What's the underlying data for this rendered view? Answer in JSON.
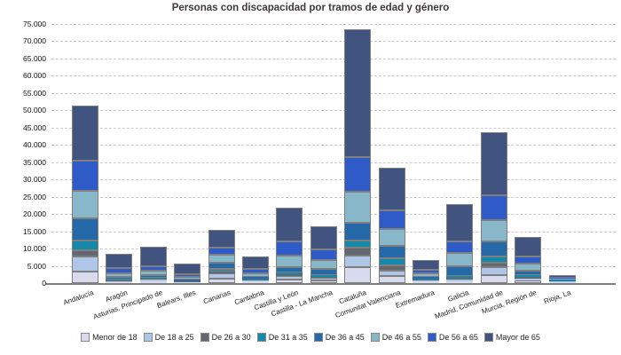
{
  "chart_data": {
    "type": "bar",
    "stacked": true,
    "title": "Personas con discapacidad por tramos de edad y género",
    "xlabel": "",
    "ylabel": "",
    "ylim": [
      0,
      75000
    ],
    "ytick_interval": 5000,
    "ytick_labels": [
      "75.000",
      "70.000",
      "65.000",
      "60.000",
      "55.000",
      "50.000",
      "45.000",
      "40.000",
      "35.000",
      "30.000",
      "25.000",
      "20.000",
      "15.000",
      "10.000",
      "5.000",
      "0"
    ],
    "grid": "horizontal-dashed",
    "legend_position": "bottom",
    "categories": [
      "Andalucía",
      "Aragón",
      "Asturias, Principado de",
      "Balears, Illes",
      "Canarias",
      "Cantabria",
      "Castilla y León",
      "Castilla - La Mancha",
      "Cataluña",
      "Comunitat Valenciana",
      "Extremadura",
      "Galicia",
      "Madrid, Comunidad de",
      "Murcia, Región de",
      "Rioja, La"
    ],
    "series": [
      {
        "name": "Menor de 18",
        "color": "#d8dbed",
        "values": [
          3400,
          300,
          500,
          150,
          1400,
          400,
          1000,
          800,
          4600,
          2000,
          400,
          600,
          2200,
          700,
          200
        ]
      },
      {
        "name": "De 18 a 25",
        "color": "#aec6e8",
        "values": [
          4300,
          300,
          400,
          150,
          1500,
          450,
          1100,
          800,
          3400,
          1700,
          350,
          550,
          2500,
          600,
          200
        ]
      },
      {
        "name": "De 26 a 30",
        "color": "#64686e",
        "values": [
          1800,
          200,
          300,
          100,
          400,
          200,
          400,
          300,
          2300,
          1500,
          250,
          350,
          1300,
          550,
          100
        ]
      },
      {
        "name": "De 31 a 35",
        "color": "#1589ab",
        "values": [
          2900,
          300,
          400,
          200,
          700,
          250,
          500,
          500,
          2000,
          1900,
          300,
          500,
          1700,
          550,
          150
        ]
      },
      {
        "name": "De 36 a 45",
        "color": "#2569a9",
        "values": [
          6300,
          750,
          700,
          350,
          2000,
          550,
          1700,
          1750,
          5100,
          3700,
          600,
          3000,
          4300,
          1300,
          300
        ]
      },
      {
        "name": "De 46 a 55",
        "color": "#88b7ca",
        "values": [
          8100,
          1050,
          1200,
          850,
          2250,
          850,
          3300,
          2550,
          9100,
          4900,
          800,
          3700,
          6250,
          1900,
          250
        ]
      },
      {
        "name": "De 56 a 65",
        "color": "#2f5bc8",
        "values": [
          8600,
          1400,
          1500,
          850,
          2050,
          1450,
          4000,
          3000,
          10000,
          5400,
          1100,
          3300,
          7150,
          2100,
          350
        ]
      },
      {
        "name": "Mayor de 65",
        "color": "#41547f",
        "values": [
          16000,
          4300,
          5600,
          3100,
          5100,
          3650,
          9800,
          6800,
          37000,
          12300,
          2900,
          10900,
          18200,
          5700,
          800
        ]
      }
    ]
  },
  "colors": {
    "grid": "#cbcbcb",
    "axis": "#7f7f7f",
    "title_text": "#3f3a3a",
    "tick_text": "#1a1a1a"
  }
}
